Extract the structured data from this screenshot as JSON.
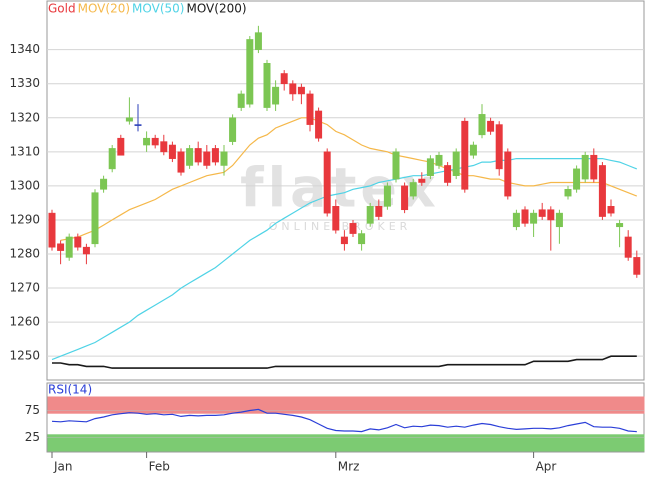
{
  "chart_data": [
    {
      "type": "candlestick",
      "categories": [
        "Jan",
        null,
        null,
        null,
        null,
        null,
        null,
        null,
        null,
        null,
        null,
        "Feb",
        null,
        null,
        null,
        null,
        null,
        null,
        null,
        null,
        null,
        null,
        null,
        null,
        null,
        null,
        null,
        null,
        null,
        null,
        null,
        null,
        null,
        "Mrz",
        null,
        null,
        null,
        null,
        null,
        null,
        null,
        null,
        null,
        null,
        null,
        null,
        null,
        null,
        null,
        null,
        null,
        null,
        null,
        null,
        null,
        null,
        "Apr",
        null,
        null,
        null,
        null,
        null,
        null,
        null,
        null,
        null,
        null,
        null,
        null
      ],
      "ylim": [
        1243,
        1354
      ],
      "yticks": [
        1250,
        1260,
        1270,
        1280,
        1290,
        1300,
        1310,
        1320,
        1330,
        1340
      ],
      "grid": true,
      "watermark": "flatex",
      "watermark_sub": "ONLINE BROKER",
      "up_color": "#7cc653",
      "down_color": "#e8383d",
      "doji_color": "#2b3fb8",
      "series": [
        {
          "name": "Gold",
          "color": "#e8383d",
          "open": [
            1292,
            1283,
            1279,
            1285,
            1282,
            1283,
            1299,
            1305,
            1314,
            1319,
            1318,
            1312,
            1314,
            1313,
            1312,
            1310,
            1306,
            1311,
            1310,
            1311,
            1306,
            1313,
            1323,
            1324,
            1340,
            1323,
            1324,
            1333,
            1330,
            1329,
            1327,
            1322,
            1310,
            1294,
            1285,
            1289,
            1283,
            1289,
            1294,
            1294,
            1302,
            1300,
            1297,
            1302,
            1303,
            1306,
            1306,
            1303,
            1319,
            1309,
            1315,
            1319,
            1318,
            1310,
            1288,
            1293,
            1289,
            1293,
            1293,
            1288,
            1297,
            1299,
            1302,
            1309,
            1306,
            1294,
            1288,
            1285,
            1279
          ],
          "high": [
            1293,
            1284,
            1286,
            1286,
            1283,
            1299,
            1303,
            1312,
            1315,
            1326,
            1324,
            1316,
            1315,
            1315,
            1313,
            1311,
            1312,
            1313,
            1312,
            1312,
            1312,
            1321,
            1328,
            1344,
            1347,
            1337,
            1331,
            1334,
            1331,
            1330,
            1328,
            1323,
            1311,
            1296,
            1287,
            1290,
            1287,
            1295,
            1296,
            1301,
            1311,
            1301,
            1302,
            1304,
            1309,
            1310,
            1307,
            1311,
            1320,
            1313,
            1324,
            1320,
            1319,
            1311,
            1293,
            1294,
            1293,
            1295,
            1294,
            1293,
            1300,
            1306,
            1310,
            1311,
            1307,
            1296,
            1290,
            1287,
            1281
          ],
          "low": [
            1281,
            1277,
            1278,
            1281,
            1277,
            1282,
            1298,
            1304,
            1309,
            1318,
            1316,
            1310,
            1311,
            1309,
            1307,
            1303,
            1305,
            1306,
            1305,
            1306,
            1303,
            1312,
            1322,
            1323,
            1339,
            1322,
            1322,
            1328,
            1325,
            1324,
            1316,
            1313,
            1291,
            1286,
            1281,
            1285,
            1281,
            1288,
            1290,
            1293,
            1301,
            1292,
            1296,
            1300,
            1302,
            1305,
            1300,
            1302,
            1298,
            1308,
            1314,
            1315,
            1303,
            1296,
            1287,
            1288,
            1285,
            1290,
            1281,
            1283,
            1296,
            1298,
            1301,
            1301,
            1290,
            1291,
            1282,
            1278,
            1273
          ],
          "close": [
            1282,
            1281,
            1285,
            1282,
            1280,
            1298,
            1302,
            1311,
            1309,
            1320,
            1318,
            1314,
            1312,
            1310,
            1308,
            1304,
            1311,
            1307,
            1306,
            1307,
            1310,
            1320,
            1327,
            1343,
            1345,
            1336,
            1329,
            1330,
            1327,
            1327,
            1318,
            1314,
            1292,
            1287,
            1283,
            1286,
            1286,
            1294,
            1291,
            1300,
            1310,
            1293,
            1301,
            1301,
            1308,
            1309,
            1301,
            1310,
            1299,
            1312,
            1321,
            1316,
            1305,
            1297,
            1292,
            1289,
            1292,
            1291,
            1290,
            1292,
            1299,
            1305,
            1309,
            1302,
            1291,
            1292,
            1289,
            1279,
            1274
          ]
        },
        {
          "name": "MOV(20)",
          "color": "#f5b84a",
          "values": [
            null,
            1284,
            1284.5,
            1285,
            1286,
            1287,
            1288.5,
            1290,
            1291.5,
            1293,
            1294,
            1295,
            1296,
            1297.5,
            1299,
            1300,
            1301,
            1302,
            1303,
            1303.5,
            1304,
            1306,
            1309,
            1312,
            1314,
            1315,
            1317,
            1318,
            1319,
            1320,
            1320,
            1319,
            1318,
            1316,
            1315,
            1313.5,
            1312,
            1311,
            1310.5,
            1310,
            1309,
            1308.5,
            1308,
            1307.5,
            1307,
            1306,
            1305,
            1304,
            1303,
            1303,
            1302.5,
            1302,
            1302,
            1301,
            1300.5,
            1300,
            1300,
            1300.5,
            1301,
            1301,
            1301,
            1301,
            1301,
            1301,
            1301,
            1300,
            1299,
            1298,
            1297
          ]
        },
        {
          "name": "MOV(50)",
          "color": "#4fd3e6",
          "values": [
            1249,
            1250,
            1251,
            1252,
            1253,
            1254,
            1255.5,
            1257,
            1258.5,
            1260,
            1262,
            1263.5,
            1265,
            1266.5,
            1268,
            1270,
            1271.5,
            1273,
            1274.5,
            1276,
            1278,
            1280,
            1282,
            1284,
            1285.5,
            1287,
            1289,
            1290.5,
            1292,
            1293.5,
            1295,
            1296,
            1297,
            1297.5,
            1298,
            1299,
            1299.5,
            1300,
            1301,
            1301.5,
            1302,
            1302.5,
            1303,
            1303,
            1303.5,
            1304,
            1304.5,
            1305,
            1305.5,
            1306,
            1307,
            1307,
            1307.5,
            1307.5,
            1308,
            1308,
            1308,
            1308,
            1308,
            1308,
            1308,
            1308,
            1308,
            1308,
            1308,
            1307.5,
            1307,
            1306,
            1305
          ]
        },
        {
          "name": "MOV(200)",
          "color": "#1a1a1a",
          "values": [
            1248,
            1248,
            1247.5,
            1247.5,
            1247,
            1247,
            1247,
            1246.5,
            1246.5,
            1246.5,
            1246.5,
            1246.5,
            1246.5,
            1246.5,
            1246.5,
            1246.5,
            1246.5,
            1246.5,
            1246.5,
            1246.5,
            1246.5,
            1246.5,
            1246.5,
            1246.5,
            1246.5,
            1246.5,
            1247,
            1247,
            1247,
            1247,
            1247,
            1247,
            1247,
            1247,
            1247,
            1247,
            1247,
            1247,
            1247,
            1247,
            1247,
            1247,
            1247,
            1247,
            1247,
            1247,
            1247.5,
            1247.5,
            1247.5,
            1247.5,
            1247.5,
            1247.5,
            1247.5,
            1247.5,
            1247.5,
            1247.5,
            1248.5,
            1248.5,
            1248.5,
            1248.5,
            1248.5,
            1249,
            1249,
            1249,
            1249,
            1250,
            1250,
            1250,
            1250
          ]
        }
      ]
    },
    {
      "type": "line",
      "ylim": [
        0,
        100
      ],
      "yticks": [
        25,
        75
      ],
      "bands": [
        {
          "range": [
            70,
            100
          ],
          "color": "#f08a8a"
        },
        {
          "range": [
            0,
            30
          ],
          "color": "#7ccb72"
        }
      ],
      "series": [
        {
          "name": "RSI(14)",
          "color": "#2b3fd8",
          "values": [
            55,
            54,
            56,
            55,
            54,
            60,
            63,
            67,
            69,
            71,
            70,
            68,
            69,
            67,
            68,
            64,
            66,
            65,
            66,
            66,
            67,
            70,
            72,
            75,
            77,
            70,
            70,
            68,
            66,
            63,
            58,
            50,
            42,
            38,
            37,
            37,
            36,
            41,
            39,
            43,
            49,
            43,
            46,
            45,
            48,
            47,
            44,
            46,
            44,
            48,
            51,
            49,
            45,
            42,
            40,
            41,
            42,
            42,
            41,
            43,
            47,
            50,
            53,
            45,
            44,
            44,
            42,
            37,
            36
          ]
        }
      ]
    }
  ]
}
